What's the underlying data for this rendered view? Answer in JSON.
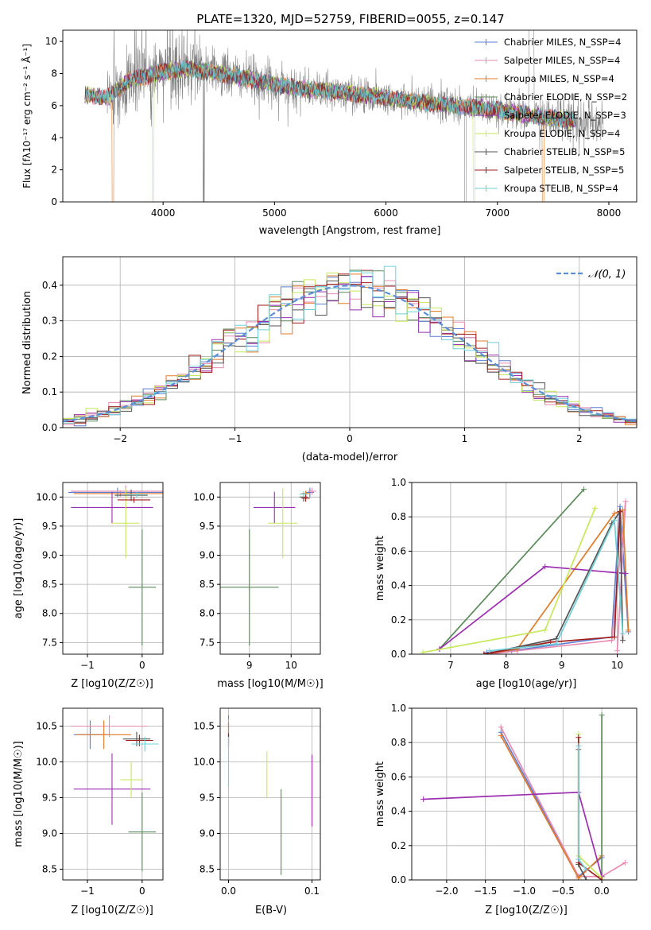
{
  "figure": {
    "title": "PLATE=1320, MJD=52759, FIBERID=0055, z=0.147"
  },
  "styles": {
    "series_colors": [
      "#5b7fd4",
      "#e88ab0",
      "#e07b2a",
      "#5a8a5a",
      "#9b2fb0",
      "#c6e85a",
      "#555555",
      "#a01d1d",
      "#6fd0d8"
    ],
    "data_gray": "#808080",
    "gauss_color": "#5b8fd6",
    "grid_color": "#b0b0b0"
  },
  "labels": {
    "spectrum": {
      "xlabel": "wavelength [Angstrom, rest frame]",
      "ylabel": "Flux [fλ10⁻¹⁷ erg cm⁻² s⁻¹ Å⁻¹]",
      "legend": [
        "Chabrier MILES, N_SSP=4",
        "Salpeter MILES, N_SSP=4",
        "Kroupa MILES, N_SSP=4",
        "Chabrier ELODIE, N_SSP=2",
        "Salpeter ELODIE, N_SSP=3",
        "Kroupa ELODIE, N_SSP=4",
        "Chabrier STELIB, N_SSP=5",
        "Salpeter STELIB, N_SSP=5",
        "Kroupa STELIB, N_SSP=4"
      ]
    },
    "residuals": {
      "xlabel": "(data-model)/error",
      "ylabel": "Normed distribution",
      "legend": "𝒩(0, 1)"
    },
    "panel_age_Z": {
      "xlabel": "Z [log10(Z/Z☉)]",
      "ylabel": "age  [log10(age/yr)]"
    },
    "panel_age_mass": {
      "xlabel": "mass [log10(M/M☉)]"
    },
    "panel_weight_age": {
      "xlabel": "age  [log10(age/yr)]",
      "ylabel": "mass weight"
    },
    "panel_mass_Z": {
      "xlabel": "Z [log10(Z/Z☉)]",
      "ylabel": "mass [log10(M/M☉)]"
    },
    "panel_mass_ebv": {
      "xlabel": "E(B-V)"
    },
    "panel_weight_Z": {
      "xlabel": "Z [log10(Z/Z☉)]",
      "ylabel": "mass weight"
    }
  },
  "chart_data": [
    {
      "type": "line",
      "id": "spectrum",
      "xlim": [
        3100,
        8250
      ],
      "ylim": [
        0,
        10.7
      ],
      "xticks": [
        4000,
        5000,
        6000,
        7000,
        8000
      ],
      "yticks": [
        0,
        2,
        4,
        6,
        8,
        10
      ],
      "grid": false,
      "legend_position": "top-right",
      "data_x_range": [
        3300,
        7950
      ],
      "model_x_range": [
        3300,
        7700
      ],
      "model_flux_nodes": {
        "x": [
          3300,
          3500,
          3700,
          4000,
          4200,
          4500,
          4800,
          5000,
          5300,
          5600,
          6000,
          6300,
          6600,
          6900,
          7200,
          7500,
          7950
        ],
        "y": [
          6.7,
          6.5,
          7.6,
          8.1,
          8.3,
          8.0,
          7.6,
          7.3,
          7.0,
          6.8,
          6.5,
          6.2,
          6.0,
          5.8,
          5.5,
          5.2,
          4.9
        ]
      }
    },
    {
      "type": "step",
      "id": "residuals",
      "xlim": [
        -2.5,
        2.5
      ],
      "ylim": [
        0,
        0.48
      ],
      "xticks": [
        -2,
        -1,
        0,
        1,
        2
      ],
      "yticks": [
        0.0,
        0.1,
        0.2,
        0.3,
        0.4
      ],
      "grid": true,
      "legend_position": "top-right",
      "bin_width": 0.1,
      "bin_start": -2.5,
      "gaussian": {
        "mean": 0,
        "sigma": 1,
        "label": "N(0, 1)"
      },
      "series_count": 9
    },
    {
      "type": "scatter",
      "id": "age_vs_Z",
      "xlim": [
        -1.45,
        0.38
      ],
      "ylim": [
        7.3,
        10.25
      ],
      "xticks": [
        -1,
        0
      ],
      "yticks": [
        7.5,
        8.0,
        8.5,
        9.0,
        9.5,
        10.0
      ],
      "grid": true,
      "points": [
        {
          "x": -0.45,
          "y": 10.08,
          "xerr": 0.9,
          "yerr": 0.08,
          "s": 0
        },
        {
          "x": -0.3,
          "y": 10.1,
          "xerr": 1.0,
          "yerr": 0.1,
          "s": 1
        },
        {
          "x": -0.4,
          "y": 10.06,
          "xerr": 0.85,
          "yerr": 0.05,
          "s": 2
        },
        {
          "x": 0.0,
          "y": 8.45,
          "xerr": 0.25,
          "yerr": 1.0,
          "s": 3
        },
        {
          "x": -0.55,
          "y": 9.82,
          "xerr": 0.75,
          "yerr": 0.27,
          "s": 4
        },
        {
          "x": -0.3,
          "y": 9.55,
          "xerr": 0.25,
          "yerr": 0.6,
          "s": 5
        },
        {
          "x": -0.2,
          "y": 10.03,
          "xerr": 0.3,
          "yerr": 0.1,
          "s": 6
        },
        {
          "x": -0.15,
          "y": 9.95,
          "xerr": 0.3,
          "yerr": 0.05,
          "s": 7
        },
        {
          "x": -0.1,
          "y": 10.04,
          "xerr": 0.2,
          "yerr": 0.05,
          "s": 8
        }
      ]
    },
    {
      "type": "scatter",
      "id": "age_vs_mass",
      "xlim": [
        8.3,
        10.7
      ],
      "ylim": [
        7.3,
        10.25
      ],
      "xticks": [
        9,
        10
      ],
      "yticks": [
        7.5,
        8.0,
        8.5,
        9.0,
        9.5,
        10.0
      ],
      "grid": true,
      "points": [
        {
          "x": 10.45,
          "y": 10.08,
          "xerr": 0.1,
          "yerr": 0.08,
          "s": 0
        },
        {
          "x": 10.5,
          "y": 10.1,
          "xerr": 0.1,
          "yerr": 0.06,
          "s": 1
        },
        {
          "x": 10.35,
          "y": 10.06,
          "xerr": 0.1,
          "yerr": 0.05,
          "s": 2
        },
        {
          "x": 9.0,
          "y": 8.45,
          "xerr": 0.7,
          "yerr": 1.0,
          "s": 3
        },
        {
          "x": 9.6,
          "y": 9.82,
          "xerr": 0.5,
          "yerr": 0.27,
          "s": 4
        },
        {
          "x": 9.8,
          "y": 9.55,
          "xerr": 0.35,
          "yerr": 0.6,
          "s": 5
        },
        {
          "x": 10.3,
          "y": 10.0,
          "xerr": 0.1,
          "yerr": 0.08,
          "s": 6
        },
        {
          "x": 10.35,
          "y": 9.98,
          "xerr": 0.1,
          "yerr": 0.06,
          "s": 7
        },
        {
          "x": 10.3,
          "y": 10.05,
          "xerr": 0.1,
          "yerr": 0.05,
          "s": 8
        }
      ]
    },
    {
      "type": "line",
      "id": "weight_vs_age",
      "xlim": [
        6.3,
        10.35
      ],
      "ylim": [
        0,
        1.0
      ],
      "xticks": [
        7,
        8,
        9,
        10
      ],
      "yticks": [
        0.0,
        0.2,
        0.4,
        0.6,
        0.8,
        1.0
      ],
      "grid": true,
      "series": [
        {
          "s": 0,
          "x": [
            7.65,
            8.1,
            9.9,
            10.05,
            10.2
          ],
          "y": [
            0.01,
            0.02,
            0.1,
            0.86,
            0.13
          ]
        },
        {
          "s": 1,
          "x": [
            7.7,
            8.2,
            9.9,
            10.15,
            10.0
          ],
          "y": [
            0.0,
            0.02,
            0.08,
            0.89,
            0.02
          ]
        },
        {
          "s": 2,
          "x": [
            7.6,
            8.2,
            9.95,
            10.1,
            10.2
          ],
          "y": [
            0.0,
            0.03,
            0.82,
            0.84,
            0.14
          ]
        },
        {
          "s": 3,
          "x": [
            6.8,
            9.4
          ],
          "y": [
            0.03,
            0.96
          ]
        },
        {
          "s": 4,
          "x": [
            6.8,
            8.7,
            10.15
          ],
          "y": [
            0.03,
            0.51,
            0.47
          ]
        },
        {
          "s": 5,
          "x": [
            6.5,
            8.7,
            9.6
          ],
          "y": [
            0.01,
            0.14,
            0.85
          ]
        },
        {
          "s": 6,
          "x": [
            7.6,
            8.9,
            9.9,
            10.05,
            10.1
          ],
          "y": [
            0.0,
            0.09,
            0.76,
            0.83,
            0.08
          ]
        },
        {
          "s": 7,
          "x": [
            7.6,
            8.8,
            9.95,
            10.05
          ],
          "y": [
            0.0,
            0.07,
            0.1,
            0.83
          ]
        },
        {
          "s": 8,
          "x": [
            7.7,
            8.9,
            9.95,
            10.1
          ],
          "y": [
            0.02,
            0.06,
            0.78,
            0.12
          ]
        }
      ]
    },
    {
      "type": "scatter",
      "id": "mass_vs_Z",
      "xlim": [
        -1.45,
        0.38
      ],
      "ylim": [
        8.35,
        10.75
      ],
      "xticks": [
        -1,
        0
      ],
      "yticks": [
        8.5,
        9.0,
        9.5,
        10.0,
        10.5
      ],
      "grid": true,
      "points": [
        {
          "x": -0.95,
          "y": 10.38,
          "xerr": 0.3,
          "yerr": 0.2,
          "s": 0
        },
        {
          "x": -0.6,
          "y": 10.5,
          "xerr": 0.7,
          "yerr": 0.15,
          "s": 1
        },
        {
          "x": -0.7,
          "y": 10.38,
          "xerr": 0.5,
          "yerr": 0.2,
          "s": 2
        },
        {
          "x": 0.0,
          "y": 9.02,
          "xerr": 0.25,
          "yerr": 0.55,
          "s": 3
        },
        {
          "x": -0.55,
          "y": 9.62,
          "xerr": 0.7,
          "yerr": 0.5,
          "s": 4
        },
        {
          "x": -0.2,
          "y": 9.75,
          "xerr": 0.2,
          "yerr": 0.25,
          "s": 5
        },
        {
          "x": -0.1,
          "y": 10.32,
          "xerr": 0.25,
          "yerr": 0.1,
          "s": 6
        },
        {
          "x": -0.05,
          "y": 10.3,
          "xerr": 0.25,
          "yerr": 0.08,
          "s": 7
        },
        {
          "x": 0.05,
          "y": 10.25,
          "xerr": 0.25,
          "yerr": 0.1,
          "s": 8
        }
      ]
    },
    {
      "type": "scatter",
      "id": "mass_vs_ebv",
      "xlim": [
        -0.01,
        0.11
      ],
      "ylim": [
        8.35,
        10.75
      ],
      "xticks": [
        0.0,
        0.1
      ],
      "yticks": [
        8.5,
        9.0,
        9.5,
        10.0,
        10.5
      ],
      "grid": true,
      "points": [
        {
          "x": 0.0,
          "y": 10.5,
          "xerr": 0,
          "yerr": 0.15,
          "s": 0
        },
        {
          "x": 0.0,
          "y": 10.48,
          "xerr": 0,
          "yerr": 0.12,
          "s": 1
        },
        {
          "x": 0.0,
          "y": 10.45,
          "xerr": 0,
          "yerr": 0.1,
          "s": 2
        },
        {
          "x": 0.063,
          "y": 9.02,
          "xerr": 0,
          "yerr": 0.6,
          "s": 3
        },
        {
          "x": 0.1,
          "y": 9.6,
          "xerr": 0,
          "yerr": 0.5,
          "s": 4
        },
        {
          "x": 0.046,
          "y": 9.82,
          "xerr": 0,
          "yerr": 0.33,
          "s": 5
        },
        {
          "x": 0.0,
          "y": 10.3,
          "xerr": 0,
          "yerr": 0.1,
          "s": 6
        },
        {
          "x": 0.0,
          "y": 10.3,
          "xerr": 0,
          "yerr": 0.1,
          "s": 7
        },
        {
          "x": 0.0,
          "y": 10.0,
          "xerr": 0,
          "yerr": 0.35,
          "s": 8
        }
      ]
    },
    {
      "type": "line",
      "id": "weight_vs_Z",
      "xlim": [
        -2.45,
        0.45
      ],
      "ylim": [
        0,
        1.0
      ],
      "xticks": [
        -2.0,
        -1.5,
        -1.0,
        -0.5,
        0.0
      ],
      "yticks": [
        0.0,
        0.2,
        0.4,
        0.6,
        0.8,
        1.0
      ],
      "grid": true,
      "series": [
        {
          "s": 0,
          "x": [
            -1.3,
            -0.3,
            0.0
          ],
          "y": [
            0.86,
            0.02,
            0.13
          ]
        },
        {
          "s": 1,
          "x": [
            -1.3,
            -0.3,
            0.0,
            0.3
          ],
          "y": [
            0.89,
            0.02,
            0.02,
            0.1
          ]
        },
        {
          "s": 2,
          "x": [
            -1.3,
            -0.3,
            0.0
          ],
          "y": [
            0.84,
            0.01,
            0.14
          ]
        },
        {
          "s": 3,
          "x": [
            0.0,
            0.0
          ],
          "y": [
            0.0,
            0.96
          ]
        },
        {
          "s": 4,
          "x": [
            -2.3,
            -0.3,
            0.0
          ],
          "y": [
            0.47,
            0.51,
            0.02
          ]
        },
        {
          "s": 5,
          "x": [
            -0.3,
            -0.3,
            0.0
          ],
          "y": [
            0.85,
            0.14,
            0.01
          ]
        },
        {
          "s": 6,
          "x": [
            -0.3,
            -0.3,
            -0.2
          ],
          "y": [
            0.76,
            0.09,
            0.0
          ]
        },
        {
          "s": 7,
          "x": [
            -0.3,
            -0.3,
            0.0
          ],
          "y": [
            0.83,
            0.1,
            0.0
          ]
        },
        {
          "s": 8,
          "x": [
            -0.3,
            -0.3,
            -0.2
          ],
          "y": [
            0.78,
            0.12,
            0.06
          ]
        }
      ]
    }
  ]
}
